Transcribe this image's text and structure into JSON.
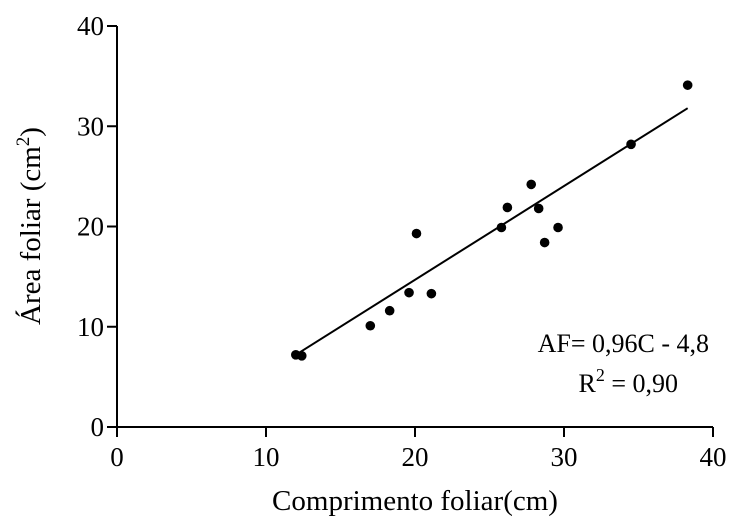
{
  "chart_data": {
    "type": "scatter",
    "title": "",
    "xlabel": "Comprimento foliar(cm)",
    "ylabel": {
      "base": "Área foliar (cm",
      "sup": "2",
      "end": ")"
    },
    "xlim": [
      0,
      40
    ],
    "ylim": [
      0,
      40
    ],
    "xticks": [
      0,
      10,
      20,
      30,
      40
    ],
    "yticks": [
      0,
      10,
      20,
      30,
      40
    ],
    "grid": false,
    "points": [
      {
        "x": 12.0,
        "y": 7.2
      },
      {
        "x": 12.4,
        "y": 7.1
      },
      {
        "x": 17.0,
        "y": 10.1
      },
      {
        "x": 18.3,
        "y": 11.6
      },
      {
        "x": 19.6,
        "y": 13.4
      },
      {
        "x": 20.1,
        "y": 19.3
      },
      {
        "x": 21.1,
        "y": 13.3
      },
      {
        "x": 25.8,
        "y": 19.9
      },
      {
        "x": 26.2,
        "y": 21.9
      },
      {
        "x": 27.8,
        "y": 24.2
      },
      {
        "x": 28.3,
        "y": 21.8
      },
      {
        "x": 28.7,
        "y": 18.4
      },
      {
        "x": 29.6,
        "y": 19.9
      },
      {
        "x": 34.5,
        "y": 28.2
      },
      {
        "x": 38.3,
        "y": 34.1
      }
    ],
    "fit_line": {
      "x": [
        12.0,
        38.3
      ],
      "y": [
        7.2,
        31.8
      ]
    },
    "annotations": {
      "equation": "AF= 0,96C - 4,8",
      "r2_base": "R",
      "r2_sup": "2",
      "r2_value": " = 0,90"
    },
    "colors": {
      "points": "#000000",
      "line": "#000000"
    }
  }
}
